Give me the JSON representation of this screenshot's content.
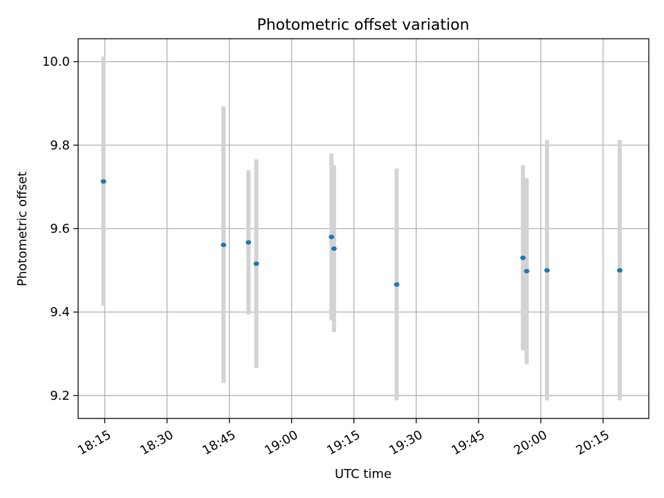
{
  "chart_data": {
    "type": "scatter",
    "title": "Photometric offset variation",
    "xlabel": "UTC time",
    "ylabel": "Photometric offset",
    "x_unit": "UTC HH:MM",
    "xlim": [
      "18:08.6",
      "20:26.0"
    ],
    "ylim": [
      9.145,
      10.055
    ],
    "x_ticks": [
      "18:15",
      "18:30",
      "18:45",
      "19:00",
      "19:15",
      "19:30",
      "19:45",
      "20:00",
      "20:15"
    ],
    "y_ticks": [
      "9.2",
      "9.4",
      "9.6",
      "9.8",
      "10.0"
    ],
    "grid": true,
    "legend": "none",
    "series": [
      {
        "marker_color": "#1f77b4",
        "errorbar_color": "#d3d3d3",
        "points": [
          {
            "x": "18:14.7",
            "y": 9.713,
            "y_low": 9.415,
            "y_high": 10.012
          },
          {
            "x": "18:43.6",
            "y": 9.561,
            "y_low": 9.23,
            "y_high": 9.893
          },
          {
            "x": "18:49.6",
            "y": 9.567,
            "y_low": 9.394,
            "y_high": 9.74
          },
          {
            "x": "18:51.5",
            "y": 9.516,
            "y_low": 9.266,
            "y_high": 9.766
          },
          {
            "x": "19:09.6",
            "y": 9.58,
            "y_low": 9.38,
            "y_high": 9.78
          },
          {
            "x": "19:10.2",
            "y": 9.552,
            "y_low": 9.352,
            "y_high": 9.752
          },
          {
            "x": "19:25.3",
            "y": 9.466,
            "y_low": 9.188,
            "y_high": 9.744
          },
          {
            "x": "19:55.7",
            "y": 9.53,
            "y_low": 9.308,
            "y_high": 9.752
          },
          {
            "x": "19:56.6",
            "y": 9.498,
            "y_low": 9.275,
            "y_high": 9.721
          },
          {
            "x": "20:01.5",
            "y": 9.5,
            "y_low": 9.188,
            "y_high": 9.812
          },
          {
            "x": "20:19.0",
            "y": 9.5,
            "y_low": 9.188,
            "y_high": 9.812
          }
        ]
      }
    ]
  }
}
